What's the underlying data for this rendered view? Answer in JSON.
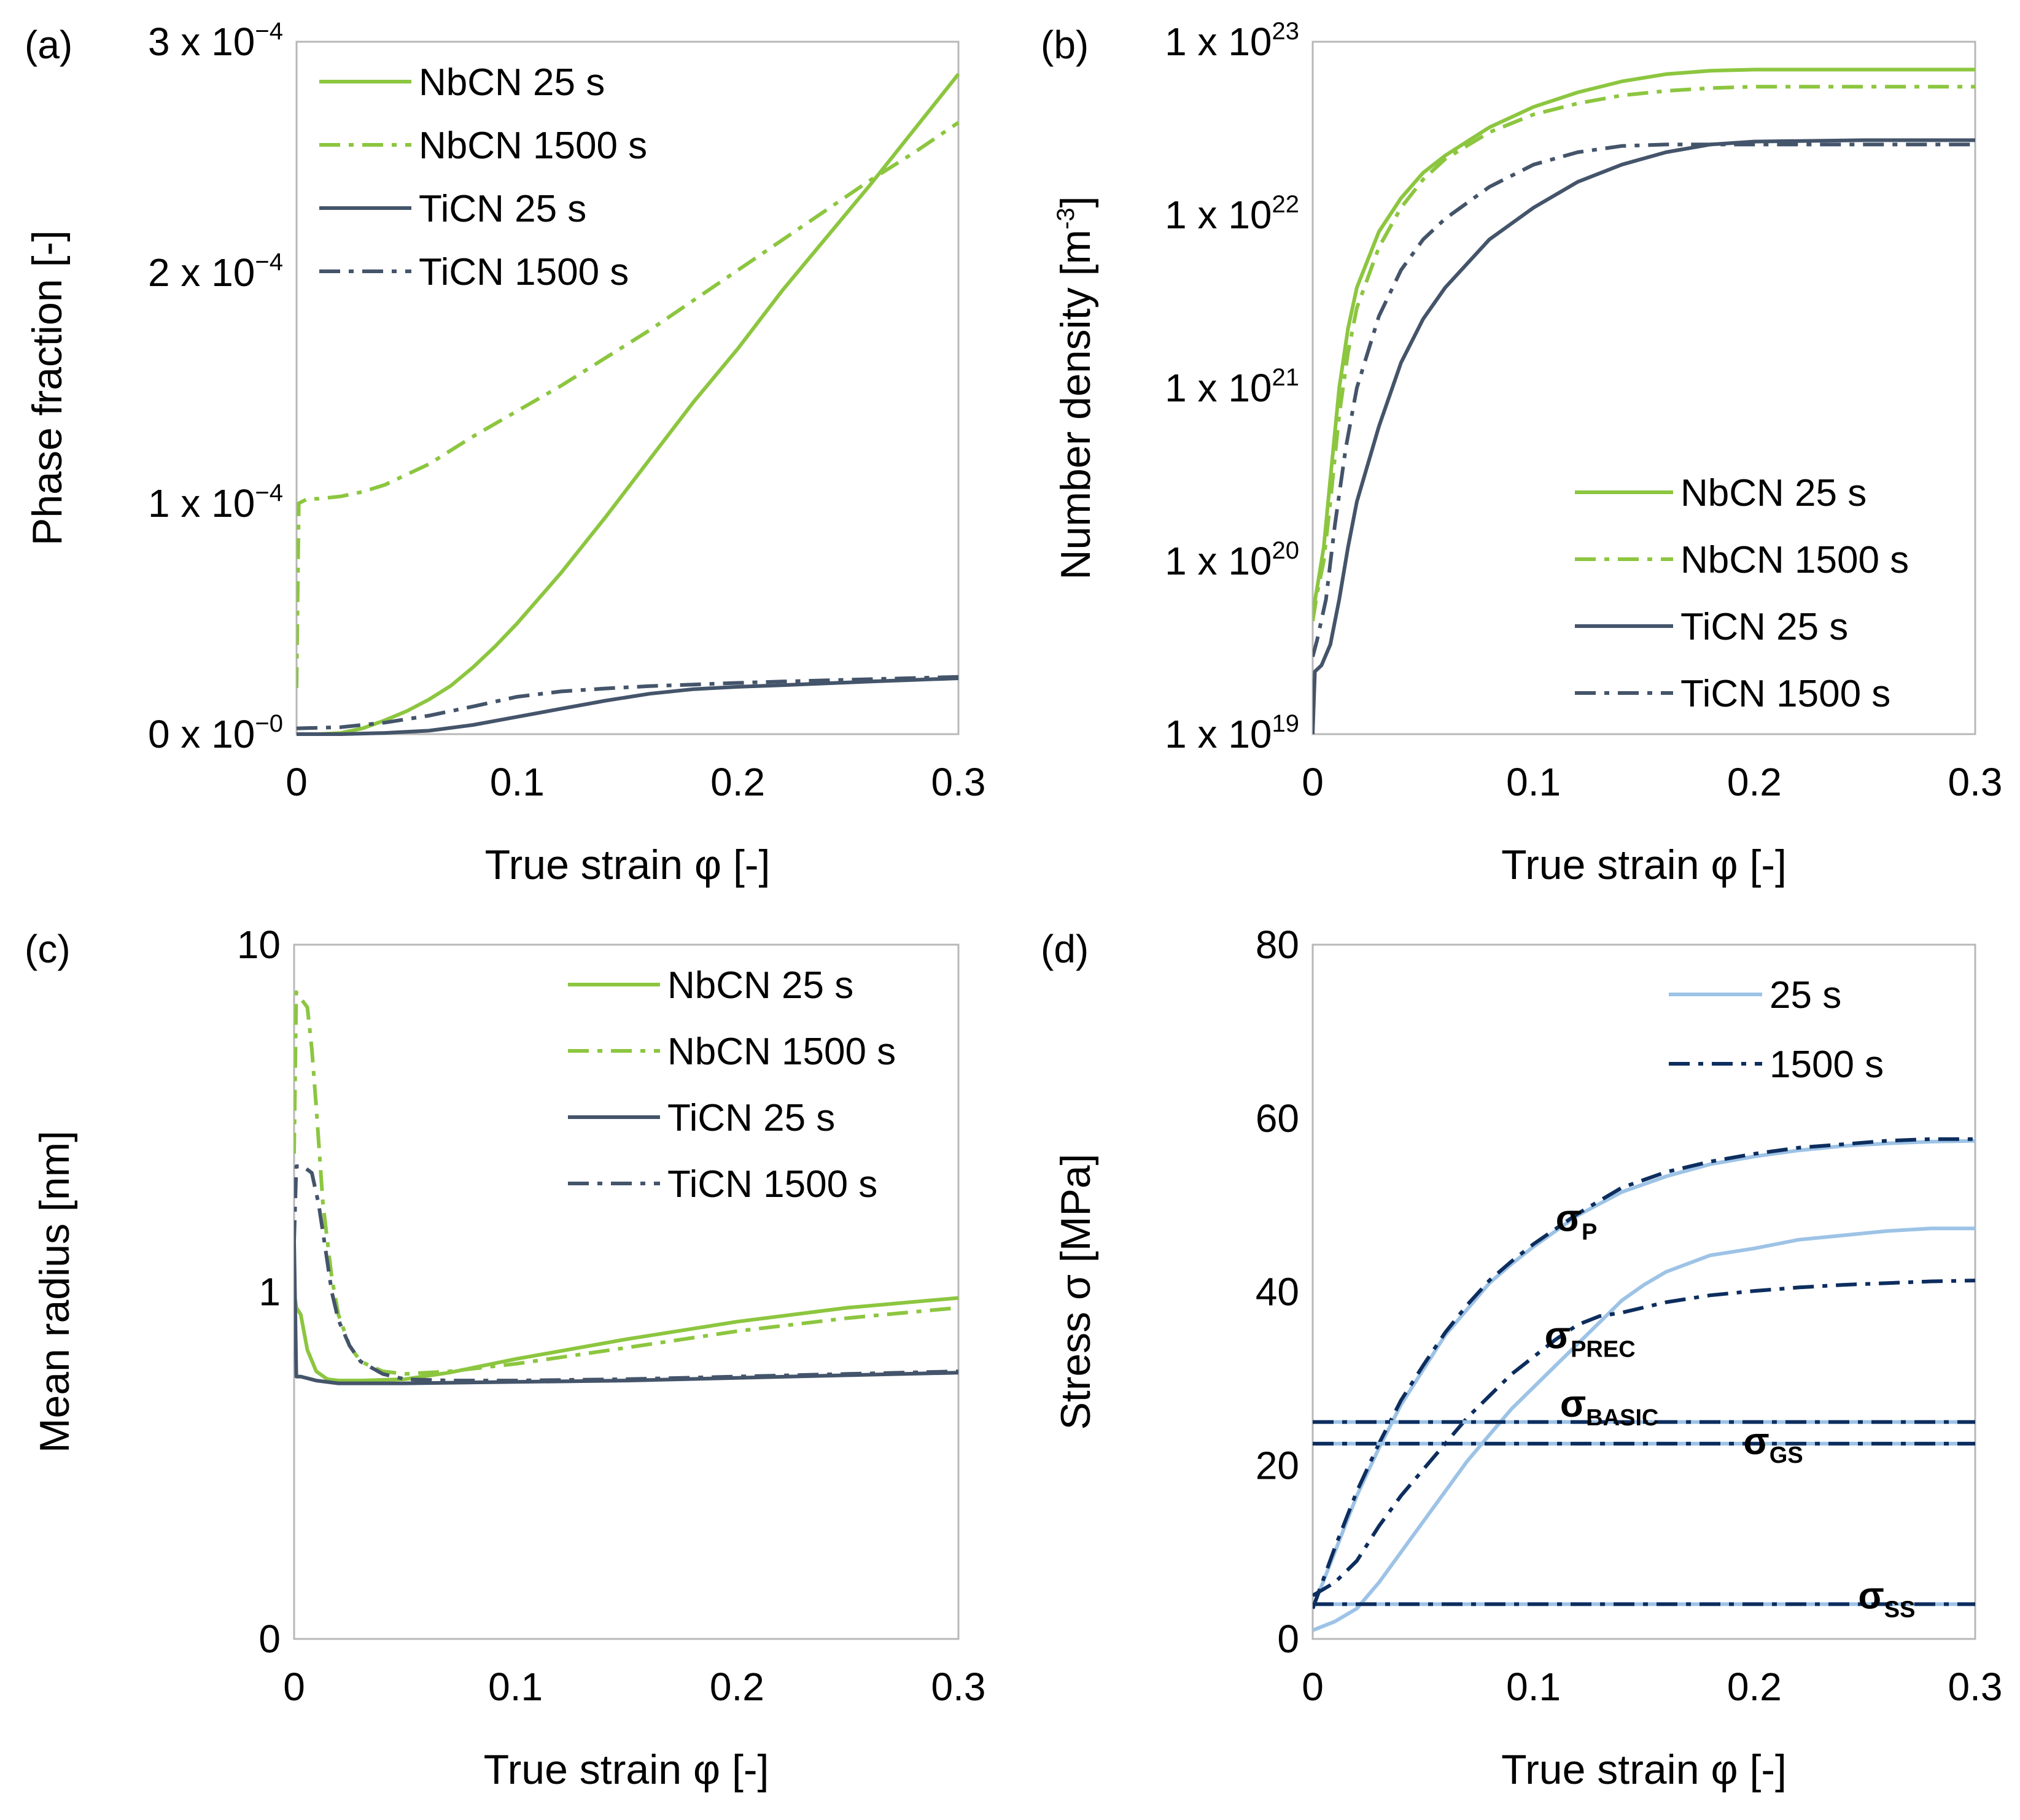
{
  "chart_data": [
    {
      "type": "line",
      "panel_label": "(a)",
      "xlabel": "True strain φ [-]",
      "ylabel": "Phase fraction [-]",
      "xlim": [
        0,
        0.3
      ],
      "ylim": [
        0,
        0.0003
      ],
      "y_scale": "linear",
      "x_ticks": [
        "0",
        "0.1",
        "0.2",
        "0.3"
      ],
      "y_ticks": [
        {
          "base": "0 x 10",
          "exp": "−0",
          "value": 0
        },
        {
          "base": "1 x 10",
          "exp": "−4",
          "value": 0.0001
        },
        {
          "base": "2 x 10",
          "exp": "−4",
          "value": 0.0002
        },
        {
          "base": "3 x 10",
          "exp": "−4",
          "value": 0.0003
        }
      ],
      "legend_position": "top-left",
      "series": [
        {
          "name": "NbCN 25 s",
          "color": "#8cc63f",
          "dash": "solid",
          "x": [
            0,
            0.01,
            0.02,
            0.03,
            0.04,
            0.05,
            0.06,
            0.07,
            0.08,
            0.09,
            0.1,
            0.12,
            0.14,
            0.16,
            0.18,
            0.2,
            0.22,
            0.24,
            0.26,
            0.28,
            0.29,
            0.3
          ],
          "y": [
            0,
            0,
            5e-07,
            2.5e-06,
            6e-06,
            1e-05,
            1.5e-05,
            2.1e-05,
            2.9e-05,
            3.8e-05,
            4.8e-05,
            7e-05,
            9.4e-05,
            0.000119,
            0.000144,
            0.000167,
            0.000192,
            0.000215,
            0.000238,
            0.000262,
            0.000274,
            0.000286
          ]
        },
        {
          "name": "NbCN 1500 s",
          "color": "#8cc63f",
          "dash": "dashdot",
          "x": [
            0,
            0.001,
            0.005,
            0.01,
            0.02,
            0.03,
            0.04,
            0.06,
            0.08,
            0.1,
            0.12,
            0.14,
            0.16,
            0.18,
            0.2,
            0.22,
            0.24,
            0.26,
            0.28,
            0.3
          ],
          "y": [
            2e-05,
            0.0001,
            0.000102,
            0.000102,
            0.000103,
            0.000105,
            0.000108,
            0.000117,
            0.000129,
            0.00014,
            0.000151,
            0.000163,
            0.000175,
            0.000188,
            0.000201,
            0.000214,
            0.000227,
            0.00024,
            0.000252,
            0.000265
          ]
        },
        {
          "name": "TiCN 25 s",
          "color": "#44546a",
          "dash": "solid",
          "x": [
            0,
            0.02,
            0.04,
            0.06,
            0.08,
            0.1,
            0.12,
            0.14,
            0.16,
            0.18,
            0.2,
            0.22,
            0.24,
            0.26,
            0.28,
            0.3
          ],
          "y": [
            0,
            0,
            5e-07,
            1.5e-06,
            4e-06,
            7.5e-06,
            1.1e-05,
            1.45e-05,
            1.75e-05,
            1.95e-05,
            2.05e-05,
            2.12e-05,
            2.2e-05,
            2.28e-05,
            2.35e-05,
            2.42e-05
          ]
        },
        {
          "name": "TiCN 1500 s",
          "color": "#44546a",
          "dash": "dashdot",
          "x": [
            0,
            0.02,
            0.04,
            0.06,
            0.08,
            0.1,
            0.12,
            0.14,
            0.16,
            0.18,
            0.2,
            0.22,
            0.24,
            0.26,
            0.28,
            0.3
          ],
          "y": [
            2.5e-06,
            3e-06,
            5e-06,
            8e-06,
            1.2e-05,
            1.62e-05,
            1.85e-05,
            1.98e-05,
            2.08e-05,
            2.15e-05,
            2.22e-05,
            2.28e-05,
            2.33e-05,
            2.38e-05,
            2.43e-05,
            2.48e-05
          ]
        }
      ]
    },
    {
      "type": "line",
      "panel_label": "(b)",
      "xlabel": "True strain φ [-]",
      "ylabel": "Number density [m",
      "ylabel_sup": "-3",
      "ylabel_end": "]",
      "xlim": [
        0,
        0.3
      ],
      "ylim": [
        1e+19,
        1e+23
      ],
      "y_scale": "log",
      "x_ticks": [
        "0",
        "0.1",
        "0.2",
        "0.3"
      ],
      "y_ticks": [
        {
          "base": "1 x 10",
          "exp": "19",
          "value": 1e+19
        },
        {
          "base": "1 x 10",
          "exp": "20",
          "value": 1e+20
        },
        {
          "base": "1 x 10",
          "exp": "21",
          "value": 1e+21
        },
        {
          "base": "1 x 10",
          "exp": "22",
          "value": 1e+22
        },
        {
          "base": "1 x 10",
          "exp": "23",
          "value": 1e+23
        }
      ],
      "legend_position": "center-right",
      "series": [
        {
          "name": "NbCN 25 s",
          "color": "#8cc63f",
          "dash": "solid",
          "x": [
            0,
            0.002,
            0.005,
            0.008,
            0.012,
            0.016,
            0.02,
            0.03,
            0.04,
            0.05,
            0.06,
            0.08,
            0.1,
            0.12,
            0.14,
            0.16,
            0.18,
            0.2,
            0.25,
            0.3
          ],
          "y": [
            5e+19,
            7e+19,
            1.2e+20,
            3e+20,
            1e+21,
            2.2e+21,
            3.8e+21,
            8e+21,
            1.25e+22,
            1.75e+22,
            2.2e+22,
            3.2e+22,
            4.2e+22,
            5.1e+22,
            5.9e+22,
            6.5e+22,
            6.8e+22,
            6.9e+22,
            6.9e+22,
            6.9e+22
          ]
        },
        {
          "name": "NbCN 1500 s",
          "color": "#8cc63f",
          "dash": "dashdot",
          "x": [
            0,
            0.002,
            0.005,
            0.008,
            0.012,
            0.016,
            0.02,
            0.03,
            0.04,
            0.05,
            0.06,
            0.08,
            0.1,
            0.12,
            0.14,
            0.16,
            0.18,
            0.2,
            0.25,
            0.3
          ],
          "y": [
            4.5e+19,
            6.5e+19,
            1e+20,
            2.2e+20,
            7e+20,
            1.6e+21,
            2.9e+21,
            6.5e+21,
            1.1e+22,
            1.6e+22,
            2.1e+22,
            3e+22,
            3.8e+22,
            4.4e+22,
            4.9e+22,
            5.2e+22,
            5.4e+22,
            5.5e+22,
            5.5e+22,
            5.5e+22
          ]
        },
        {
          "name": "TiCN 25 s",
          "color": "#44546a",
          "dash": "solid",
          "x": [
            0,
            0.001,
            0.004,
            0.008,
            0.012,
            0.016,
            0.02,
            0.03,
            0.04,
            0.05,
            0.06,
            0.08,
            0.1,
            0.12,
            0.14,
            0.16,
            0.18,
            0.2,
            0.25,
            0.3
          ],
          "y": [
            1e+19,
            2.3e+19,
            2.5e+19,
            3.3e+19,
            6e+19,
            1.2e+20,
            2.2e+20,
            6e+20,
            1.4e+21,
            2.5e+21,
            3.8e+21,
            7.2e+21,
            1.1e+22,
            1.55e+22,
            1.95e+22,
            2.3e+22,
            2.55e+22,
            2.65e+22,
            2.7e+22,
            2.7e+22
          ]
        },
        {
          "name": "TiCN 1500 s",
          "color": "#44546a",
          "dash": "dashdot",
          "x": [
            0,
            0.002,
            0.006,
            0.01,
            0.015,
            0.02,
            0.03,
            0.04,
            0.05,
            0.06,
            0.08,
            0.1,
            0.12,
            0.14,
            0.16,
            0.18,
            0.2,
            0.25,
            0.3
          ],
          "y": [
            2.8e+19,
            3.5e+19,
            6e+19,
            1.6e+20,
            4.5e+20,
            1e+21,
            2.6e+21,
            4.8e+21,
            7.2e+21,
            9.5e+21,
            1.45e+22,
            1.95e+22,
            2.3e+22,
            2.5e+22,
            2.55e+22,
            2.55e+22,
            2.55e+22,
            2.55e+22,
            2.55e+22
          ]
        }
      ]
    },
    {
      "type": "line",
      "panel_label": "(c)",
      "xlabel": "True strain φ [-]",
      "ylabel": "Mean radius [nm]",
      "xlim": [
        0,
        0.3
      ],
      "y_scale": "log",
      "y_ticks": [
        {
          "label": "0",
          "value": 0.1
        },
        {
          "label": "1",
          "value": 1
        },
        {
          "label": "10",
          "value": 10
        }
      ],
      "x_ticks": [
        "0",
        "0.1",
        "0.2",
        "0.3"
      ],
      "legend_position": "top-right",
      "series": [
        {
          "name": "NbCN 25 s",
          "color": "#8cc63f",
          "dash": "solid",
          "x": [
            0,
            0.001,
            0.003,
            0.006,
            0.01,
            0.015,
            0.02,
            0.03,
            0.05,
            0.07,
            0.1,
            0.15,
            0.2,
            0.25,
            0.3
          ],
          "y": [
            1.0,
            0.9,
            0.86,
            0.68,
            0.59,
            0.56,
            0.555,
            0.555,
            0.56,
            0.585,
            0.64,
            0.73,
            0.82,
            0.9,
            0.96
          ]
        },
        {
          "name": "NbCN 1500 s",
          "color": "#8cc63f",
          "dash": "dashdot",
          "x": [
            0,
            0.001,
            0.003,
            0.006,
            0.008,
            0.01,
            0.013,
            0.017,
            0.02,
            0.025,
            0.03,
            0.04,
            0.05,
            0.07,
            0.1,
            0.15,
            0.2,
            0.25,
            0.3
          ],
          "y": [
            2.5,
            7.3,
            7.0,
            6.6,
            5.0,
            3.4,
            1.8,
            1.1,
            0.86,
            0.7,
            0.63,
            0.59,
            0.58,
            0.59,
            0.62,
            0.69,
            0.77,
            0.84,
            0.9
          ]
        },
        {
          "name": "TiCN 25 s",
          "color": "#44546a",
          "dash": "solid",
          "x": [
            0,
            0.001,
            0.003,
            0.01,
            0.02,
            0.05,
            0.1,
            0.15,
            0.2,
            0.25,
            0.3
          ],
          "y": [
            1.4,
            0.57,
            0.57,
            0.555,
            0.545,
            0.545,
            0.55,
            0.555,
            0.565,
            0.575,
            0.585
          ]
        },
        {
          "name": "TiCN 1500 s",
          "color": "#44546a",
          "dash": "dashdot",
          "x": [
            0,
            0.001,
            0.004,
            0.008,
            0.011,
            0.014,
            0.017,
            0.02,
            0.025,
            0.03,
            0.04,
            0.05,
            0.07,
            0.1,
            0.15,
            0.2,
            0.25,
            0.3
          ],
          "y": [
            1.4,
            2.3,
            2.3,
            2.2,
            1.8,
            1.35,
            1.0,
            0.83,
            0.7,
            0.63,
            0.58,
            0.56,
            0.555,
            0.555,
            0.56,
            0.57,
            0.58,
            0.59
          ]
        }
      ]
    },
    {
      "type": "line",
      "panel_label": "(d)",
      "xlabel": "True strain φ [-]",
      "ylabel": "Stress σ [MPa]",
      "xlim": [
        0,
        0.3
      ],
      "ylim": [
        0,
        80
      ],
      "y_scale": "linear",
      "x_ticks": [
        "0",
        "0.1",
        "0.2",
        "0.3"
      ],
      "y_ticks": [
        "0",
        "20",
        "40",
        "60",
        "80"
      ],
      "legend_position": "top-right",
      "legend": [
        {
          "name": "25 s",
          "color": "#9dc3e6",
          "dash": "solid"
        },
        {
          "name": "1500 s",
          "color": "#0d2d5e",
          "dash": "dashdot"
        }
      ],
      "annotations": [
        {
          "main": "σ",
          "sub": "P",
          "x": 0.11,
          "y": 47
        },
        {
          "main": "σ",
          "sub": "PREC",
          "x": 0.105,
          "y": 33.5
        },
        {
          "main": "σ",
          "sub": "BASIC",
          "x": 0.112,
          "y": 25.6
        },
        {
          "main": "σ",
          "sub": "GS",
          "x": 0.195,
          "y": 21.3
        },
        {
          "main": "σ",
          "sub": "SS",
          "x": 0.247,
          "y": 3.5
        }
      ],
      "series": [
        {
          "name": "σP 25 s",
          "color": "#9dc3e6",
          "dash": "solid",
          "x": [
            0,
            0.01,
            0.02,
            0.03,
            0.04,
            0.05,
            0.06,
            0.07,
            0.08,
            0.09,
            0.1,
            0.12,
            0.14,
            0.16,
            0.18,
            0.2,
            0.22,
            0.24,
            0.26,
            0.28,
            0.3
          ],
          "y": [
            3.5,
            10,
            16.5,
            22,
            27,
            31,
            35,
            38,
            41,
            43.2,
            45.2,
            48.8,
            51.5,
            53.3,
            54.7,
            55.6,
            56.3,
            56.8,
            57.1,
            57.3,
            57.4
          ]
        },
        {
          "name": "σP 1500 s",
          "color": "#0d2d5e",
          "dash": "dashdot",
          "x": [
            0,
            0.01,
            0.02,
            0.03,
            0.04,
            0.05,
            0.06,
            0.07,
            0.08,
            0.09,
            0.1,
            0.12,
            0.14,
            0.16,
            0.18,
            0.2,
            0.22,
            0.24,
            0.26,
            0.28,
            0.3
          ],
          "y": [
            3.5,
            10.5,
            17,
            22.5,
            27.5,
            31.5,
            35.3,
            38.5,
            41.3,
            43.5,
            45.5,
            49,
            52,
            53.8,
            55,
            55.9,
            56.6,
            57,
            57.4,
            57.6,
            57.6
          ]
        },
        {
          "name": "σPREC 25 s",
          "color": "#9dc3e6",
          "dash": "solid",
          "x": [
            0,
            0.01,
            0.02,
            0.03,
            0.04,
            0.05,
            0.06,
            0.07,
            0.08,
            0.09,
            0.1,
            0.11,
            0.12,
            0.13,
            0.14,
            0.15,
            0.16,
            0.18,
            0.2,
            0.22,
            0.24,
            0.26,
            0.28,
            0.3
          ],
          "y": [
            1,
            2,
            3.5,
            6.5,
            10,
            13.5,
            17,
            20.5,
            23.5,
            26.5,
            29,
            31.5,
            34,
            36.5,
            39,
            40.8,
            42.3,
            44.2,
            45,
            46,
            46.5,
            47,
            47.3,
            47.3
          ]
        },
        {
          "name": "σPREC 1500 s",
          "color": "#0d2d5e",
          "dash": "dashdot",
          "x": [
            0,
            0.01,
            0.02,
            0.03,
            0.04,
            0.05,
            0.06,
            0.07,
            0.08,
            0.09,
            0.1,
            0.11,
            0.12,
            0.13,
            0.14,
            0.16,
            0.18,
            0.2,
            0.22,
            0.24,
            0.26,
            0.28,
            0.3
          ],
          "y": [
            5,
            6.5,
            9,
            13,
            16.5,
            19.5,
            22.5,
            25.5,
            28,
            30.5,
            32.5,
            34.5,
            36.2,
            37.2,
            37.6,
            38.8,
            39.6,
            40.1,
            40.5,
            40.8,
            41,
            41.2,
            41.3
          ]
        },
        {
          "name": "σBASIC 25 s",
          "color": "#9dc3e6",
          "dash": "solid",
          "x": [
            0,
            0.3
          ],
          "y": [
            25,
            25
          ]
        },
        {
          "name": "σBASIC 1500 s",
          "color": "#0d2d5e",
          "dash": "dashdot",
          "x": [
            0,
            0.3
          ],
          "y": [
            25,
            25
          ]
        },
        {
          "name": "σGS 25 s",
          "color": "#9dc3e6",
          "dash": "solid",
          "x": [
            0,
            0.3
          ],
          "y": [
            22.5,
            22.5
          ]
        },
        {
          "name": "σGS 1500 s",
          "color": "#0d2d5e",
          "dash": "dashdot",
          "x": [
            0,
            0.3
          ],
          "y": [
            22.5,
            22.5
          ]
        },
        {
          "name": "σSS 25 s",
          "color": "#9dc3e6",
          "dash": "solid",
          "x": [
            0,
            0.3
          ],
          "y": [
            4,
            4
          ]
        },
        {
          "name": "σSS 1500 s",
          "color": "#0d2d5e",
          "dash": "dashdot",
          "x": [
            0,
            0.3
          ],
          "y": [
            4,
            4
          ]
        }
      ]
    }
  ]
}
